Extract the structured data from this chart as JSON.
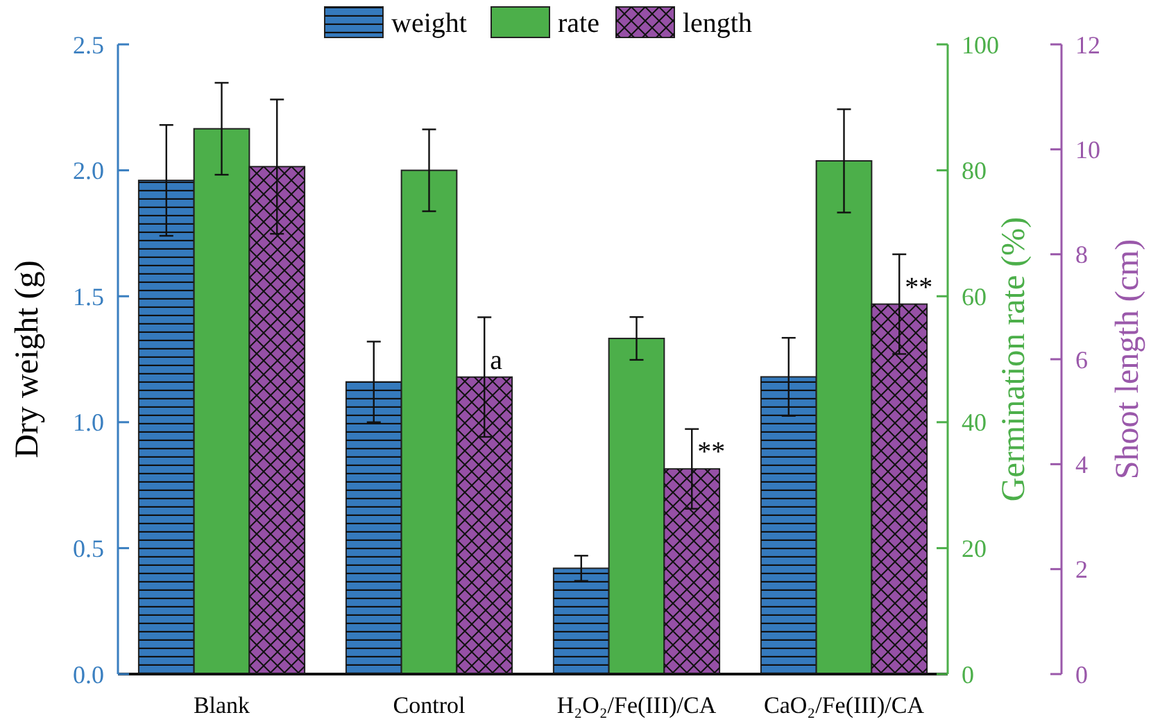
{
  "chart_data": {
    "type": "bar",
    "categories": [
      "Blank",
      "Control",
      "H₂O₂/Fe(III)/CA",
      "CaO₂/Fe(III)/CA"
    ],
    "ylabel": "Dry weight (g)",
    "y2label": "Germination rate (%)",
    "y3label": "Shoot length (cm)",
    "ylim": [
      0,
      2.5
    ],
    "yticks": [
      {
        "value": 0,
        "label": "0.0"
      },
      {
        "value": 0.5,
        "label": "0.5"
      },
      {
        "value": 1,
        "label": "1.0"
      },
      {
        "value": 1.5,
        "label": "1.5"
      },
      {
        "value": 2,
        "label": "2.0"
      },
      {
        "value": 2.5,
        "label": "2.5"
      }
    ],
    "y2lim": [
      0,
      100
    ],
    "y2ticks": [
      0,
      20,
      40,
      60,
      80,
      100
    ],
    "y3lim": [
      0,
      12
    ],
    "y3ticks": [
      0,
      2,
      4,
      6,
      8,
      10,
      12
    ],
    "series": [
      {
        "name": "weight",
        "color": "#357abd",
        "values": [
          1.96,
          1.16,
          0.42,
          1.18
        ],
        "errors": [
          0.22,
          0.16,
          0.05,
          0.155
        ]
      },
      {
        "name": "rate",
        "color": "#4caf4a",
        "axis": "y2",
        "values": [
          86.6,
          80,
          53.3,
          81.5
        ],
        "errors": [
          7.3,
          6.5,
          3.4,
          8.2
        ]
      },
      {
        "name": "length",
        "color": "#9650a6",
        "axis": "y3",
        "values": [
          9.67,
          5.66,
          3.91,
          7.05
        ],
        "errors": [
          1.28,
          1.14,
          0.76,
          0.95
        ]
      }
    ],
    "annotations": [
      "a",
      "**",
      "**"
    ],
    "legend": "top",
    "grid": false
  }
}
